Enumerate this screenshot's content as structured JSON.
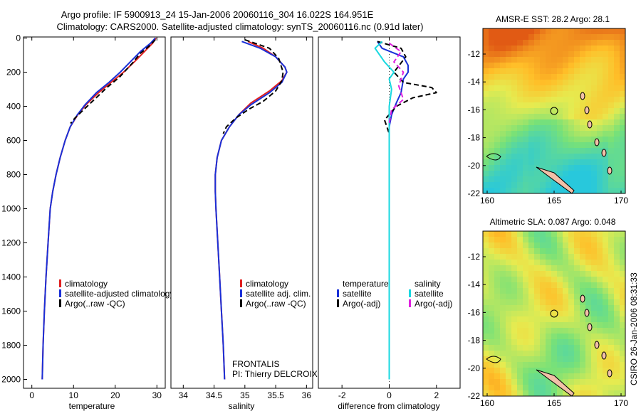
{
  "header": {
    "line1": "Argo profile: IF 5900913_24 15-Jan-2006 20060116_304 16.022S 164.951E",
    "line2": "Climatology: CARS2000. Satellite-adjusted climatology: synTS_20060116.nc (0.91d later)"
  },
  "colors": {
    "clim": "#e02020",
    "sat": "#1a30d8",
    "argo": "#000000",
    "sat_s": "#18d8e0",
    "argo_s": "#e020e0"
  },
  "chart_data": [
    {
      "type": "line",
      "xlabel": "temperature",
      "ylabel": "",
      "xlim": [
        -2,
        32
      ],
      "ylim": [
        2050,
        0
      ],
      "xticks": [
        0,
        10,
        20,
        30
      ],
      "yticks": [
        0,
        200,
        400,
        600,
        800,
        1000,
        1200,
        1400,
        1600,
        1800,
        2000
      ],
      "legend": [
        "climatology",
        "satellite-adjusted climatology",
        "Argo(..raw -QC)"
      ],
      "series": [
        {
          "name": "climatology",
          "color": "#e02020",
          "dash": "",
          "points": [
            [
              29.8,
              0
            ],
            [
              29.0,
              30
            ],
            [
              27.0,
              80
            ],
            [
              25.0,
              130
            ],
            [
              22.0,
              200
            ],
            [
              19.0,
              260
            ],
            [
              16.0,
              320
            ],
            [
              13.0,
              390
            ],
            [
              11.0,
              450
            ],
            [
              9.2,
              520
            ],
            [
              8.0,
              600
            ],
            [
              6.8,
              700
            ],
            [
              5.8,
              800
            ],
            [
              5.0,
              900
            ],
            [
              4.4,
              1000
            ],
            [
              3.9,
              1200
            ],
            [
              3.4,
              1400
            ],
            [
              3.0,
              1600
            ],
            [
              2.7,
              1800
            ],
            [
              2.5,
              2000
            ]
          ]
        },
        {
          "name": "satellite-adjusted climatology",
          "color": "#1a30d8",
          "dash": "",
          "points": [
            [
              29.6,
              0
            ],
            [
              28.5,
              30
            ],
            [
              26.0,
              80
            ],
            [
              24.0,
              130
            ],
            [
              21.2,
              200
            ],
            [
              18.5,
              260
            ],
            [
              15.5,
              320
            ],
            [
              12.8,
              390
            ],
            [
              10.9,
              450
            ],
            [
              9.2,
              520
            ],
            [
              8.0,
              600
            ],
            [
              6.8,
              700
            ],
            [
              5.8,
              800
            ],
            [
              5.0,
              900
            ],
            [
              4.4,
              1000
            ],
            [
              3.9,
              1200
            ],
            [
              3.4,
              1400
            ],
            [
              3.0,
              1600
            ],
            [
              2.7,
              1800
            ],
            [
              2.5,
              2000
            ]
          ]
        },
        {
          "name": "Argo(..raw -QC)",
          "color": "#000000",
          "dash": "7,4",
          "points": [
            [
              29.6,
              10
            ],
            [
              28.0,
              50
            ],
            [
              26.0,
              90
            ],
            [
              24.0,
              150
            ],
            [
              21.0,
              230
            ],
            [
              18.0,
              290
            ],
            [
              15.0,
              360
            ],
            [
              12.0,
              430
            ],
            [
              10.3,
              470
            ],
            [
              9.3,
              500
            ]
          ]
        }
      ]
    },
    {
      "type": "line",
      "xlabel": "salinity",
      "ylabel": "",
      "xlim": [
        33.8,
        36.1
      ],
      "ylim": [
        2050,
        0
      ],
      "xticks": [
        34,
        34.5,
        35,
        35.5,
        36
      ],
      "yticks": [],
      "legend": [
        "climatology",
        "satellite adj. clim.",
        "Argo(..raw -QC)"
      ],
      "series": [
        {
          "name": "climatology",
          "color": "#e02020",
          "dash": "",
          "points": [
            [
              35.05,
              20
            ],
            [
              35.3,
              60
            ],
            [
              35.5,
              110
            ],
            [
              35.65,
              170
            ],
            [
              35.68,
              200
            ],
            [
              35.6,
              250
            ],
            [
              35.4,
              310
            ],
            [
              35.1,
              380
            ],
            [
              34.9,
              450
            ],
            [
              34.75,
              520
            ],
            [
              34.62,
              600
            ],
            [
              34.55,
              700
            ],
            [
              34.52,
              800
            ],
            [
              34.52,
              900
            ],
            [
              34.53,
              1000
            ],
            [
              34.56,
              1200
            ],
            [
              34.59,
              1400
            ],
            [
              34.62,
              1600
            ],
            [
              34.65,
              1800
            ],
            [
              34.67,
              2000
            ]
          ]
        },
        {
          "name": "satellite adj. clim.",
          "color": "#1a30d8",
          "dash": "",
          "points": [
            [
              34.95,
              20
            ],
            [
              35.25,
              60
            ],
            [
              35.5,
              110
            ],
            [
              35.65,
              170
            ],
            [
              35.68,
              200
            ],
            [
              35.6,
              260
            ],
            [
              35.4,
              320
            ],
            [
              35.1,
              390
            ],
            [
              34.9,
              450
            ],
            [
              34.75,
              520
            ],
            [
              34.62,
              600
            ],
            [
              34.55,
              700
            ],
            [
              34.52,
              800
            ],
            [
              34.52,
              900
            ],
            [
              34.53,
              1000
            ],
            [
              34.56,
              1200
            ],
            [
              34.59,
              1400
            ],
            [
              34.62,
              1600
            ],
            [
              34.65,
              1800
            ],
            [
              34.67,
              2000
            ]
          ]
        },
        {
          "name": "Argo(..raw -QC)",
          "color": "#000000",
          "dash": "7,4",
          "points": [
            [
              35.0,
              10
            ],
            [
              35.4,
              60
            ],
            [
              35.55,
              120
            ],
            [
              35.62,
              200
            ],
            [
              35.6,
              250
            ],
            [
              35.5,
              310
            ],
            [
              35.3,
              370
            ],
            [
              35.05,
              420
            ],
            [
              34.85,
              470
            ],
            [
              34.7,
              520
            ],
            [
              34.65,
              560
            ]
          ]
        }
      ]
    },
    {
      "type": "line",
      "xlabel": "difference from climatology",
      "ylabel": "",
      "xlim": [
        -3,
        3
      ],
      "ylim": [
        2050,
        0
      ],
      "xticks": [
        -2,
        0,
        2
      ],
      "yticks": [],
      "legend_left_title": "temperature",
      "legend_right_title": "salinity",
      "legend": [
        "satellite",
        "Argo(-adj)",
        "satellite",
        "Argo(-adj)"
      ],
      "series": [
        {
          "name": "satellite",
          "color": "#1a30d8",
          "dash": "",
          "points": [
            [
              -0.5,
              20
            ],
            [
              -0.3,
              60
            ],
            [
              0.6,
              110
            ],
            [
              0.8,
              160
            ],
            [
              0.8,
              200
            ],
            [
              0.6,
              240
            ],
            [
              0.5,
              320
            ],
            [
              0.3,
              380
            ],
            [
              0.1,
              450
            ],
            [
              0.0,
              520
            ],
            [
              0.0,
              600
            ],
            [
              0.0,
              1000
            ],
            [
              0.0,
              2000
            ]
          ]
        },
        {
          "name": "Argo(-adj)",
          "color": "#000000",
          "dash": "7,4",
          "points": [
            [
              -0.5,
              20
            ],
            [
              0.5,
              60
            ],
            [
              0.7,
              110
            ],
            [
              0.2,
              200
            ],
            [
              0.6,
              260
            ],
            [
              1.8,
              290
            ],
            [
              2.0,
              320
            ],
            [
              1.0,
              350
            ],
            [
              0.3,
              400
            ],
            [
              -0.2,
              480
            ],
            [
              0.0,
              560
            ]
          ]
        },
        {
          "name": "satellite",
          "color": "#18d8e0",
          "dash": "",
          "points": [
            [
              -0.3,
              20
            ],
            [
              -0.6,
              60
            ],
            [
              -0.2,
              140
            ],
            [
              0.2,
              200
            ],
            [
              0.0,
              240
            ],
            [
              0.1,
              300
            ],
            [
              0.0,
              400
            ],
            [
              0.0,
              600
            ],
            [
              0.0,
              1000
            ],
            [
              0.0,
              2000
            ]
          ]
        },
        {
          "name": "Argo(-adj)",
          "color": "#e020e0",
          "dash": "7,4",
          "points": [
            [
              0.0,
              30
            ],
            [
              0.5,
              80
            ],
            [
              0.2,
              140
            ],
            [
              0.6,
              200
            ],
            [
              0.4,
              280
            ],
            [
              0.6,
              360
            ],
            [
              0.1,
              420
            ],
            [
              0.0,
              500
            ]
          ]
        }
      ]
    }
  ],
  "notes": {
    "frontalis": "FRONTALIS",
    "pi": "PI: Thierry DELCROIX"
  },
  "maps": [
    {
      "title": "AMSR-E SST: 28.2 Argo: 28.1",
      "xticks": [
        "160",
        "165",
        "170"
      ],
      "yticks": [
        "-12",
        "-14",
        "-16",
        "-18",
        "-20",
        "-22"
      ]
    },
    {
      "title": "Altimetric SLA: 0.087 Argo: 0.048",
      "xticks": [
        "160",
        "165",
        "170"
      ],
      "yticks": [
        "-12",
        "-14",
        "-16",
        "-18",
        "-20",
        "-22"
      ]
    }
  ],
  "credit": "CSIRO 26-Jan-2006 08:31:33"
}
